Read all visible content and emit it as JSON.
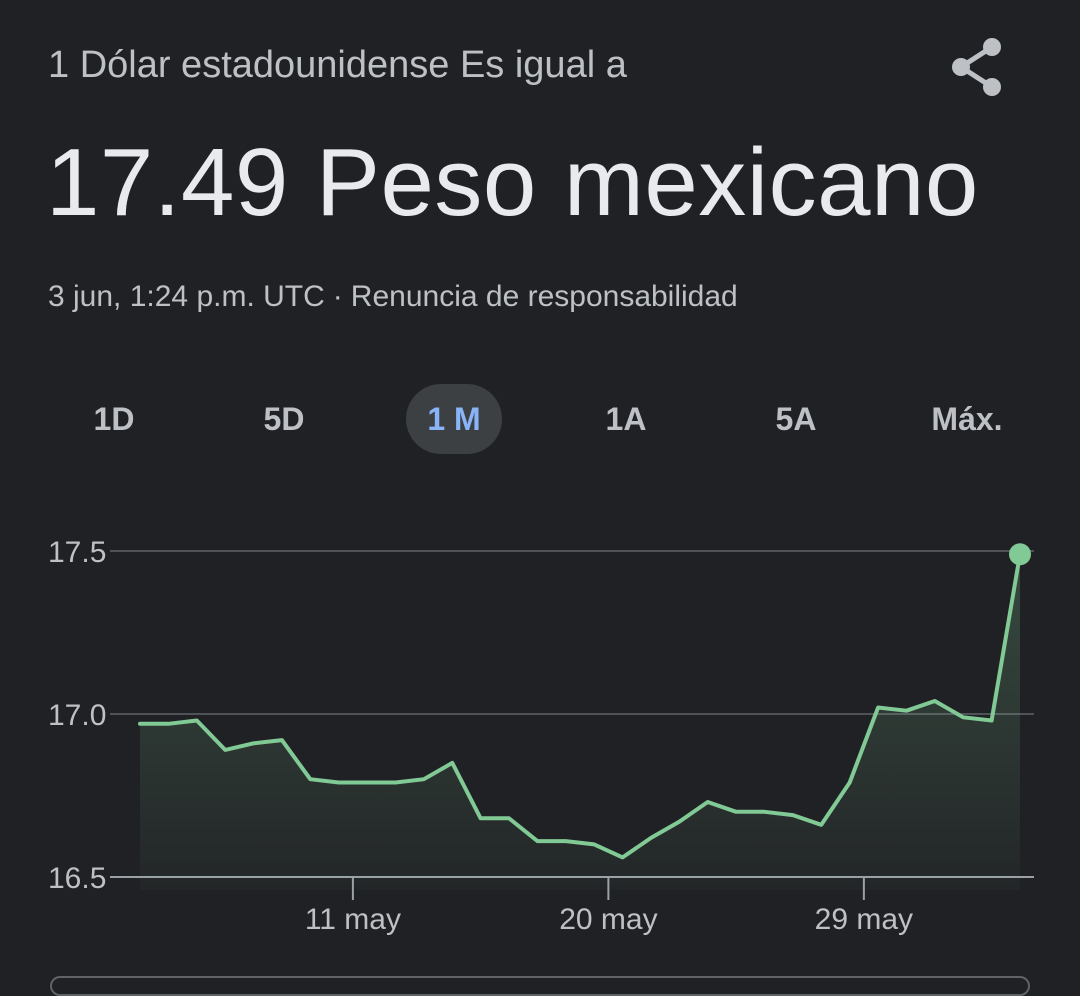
{
  "header": {
    "subtitle": "1 Dólar estadounidense Es igual a",
    "value": "17.49 Peso mexicano",
    "timestamp": "3 jun, 1:24 p.m. UTC",
    "separator": "·",
    "disclaimer": "Renuncia de responsabilidad",
    "share_icon": "share-icon"
  },
  "tabs": [
    {
      "label": "1D",
      "active": false
    },
    {
      "label": "5D",
      "active": false
    },
    {
      "label": "1 M",
      "active": true
    },
    {
      "label": "1A",
      "active": false
    },
    {
      "label": "5A",
      "active": false
    },
    {
      "label": "Máx.",
      "active": false
    }
  ],
  "colors": {
    "background": "#202124",
    "line": "#81c995",
    "active_tab_text": "#8ab4f8",
    "grid": "#5f6368"
  },
  "chart_data": {
    "type": "line",
    "title": "",
    "xlabel": "",
    "ylabel": "",
    "ylim": [
      16.5,
      17.5
    ],
    "y_ticks": [
      17.5,
      17.0,
      16.5
    ],
    "y_tick_labels": [
      "17.5",
      "17.0",
      "16.5"
    ],
    "x_tick_labels": [
      "11 may",
      "20 may",
      "29 may"
    ],
    "grid": true,
    "series": [
      {
        "values": [
          16.97,
          16.97,
          16.98,
          16.89,
          16.91,
          16.92,
          16.8,
          16.79,
          16.79,
          16.79,
          16.8,
          16.85,
          16.68,
          16.68,
          16.61,
          16.61,
          16.6,
          16.56,
          16.62,
          16.67,
          16.73,
          16.7,
          16.7,
          16.69,
          16.66,
          16.79,
          17.02,
          17.01,
          17.04,
          16.99,
          16.98,
          17.49
        ]
      }
    ]
  }
}
